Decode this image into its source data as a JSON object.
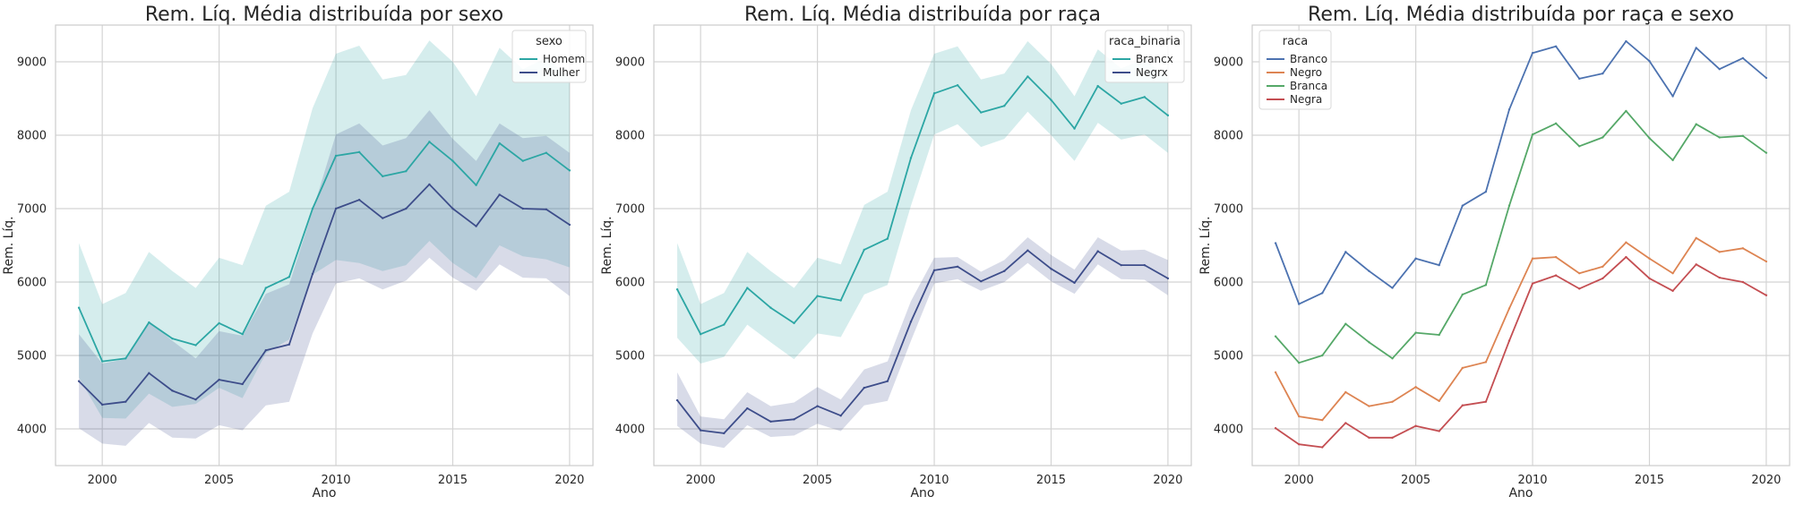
{
  "chart_data": [
    {
      "type": "line",
      "title": "Rem. Líq. Média distribuída por sexo",
      "xlabel": "Ano",
      "ylabel": "Rem. Líq.",
      "xlim": [
        1998,
        2021
      ],
      "ylim": [
        3500,
        9500
      ],
      "xticks": [
        2000,
        2005,
        2010,
        2015,
        2020
      ],
      "yticks": [
        4000,
        5000,
        6000,
        7000,
        8000,
        9000
      ],
      "grid": true,
      "legend": {
        "title": "sexo",
        "placement": "top-right"
      },
      "x": [
        1999,
        2000,
        2001,
        2002,
        2003,
        2004,
        2005,
        2006,
        2007,
        2008,
        2009,
        2010,
        2011,
        2012,
        2013,
        2014,
        2015,
        2016,
        2017,
        2018,
        2019,
        2020
      ],
      "series": [
        {
          "name": "Homem",
          "color": "#2ca6a4",
          "values": [
            5650,
            4920,
            4960,
            5450,
            5230,
            5140,
            5440,
            5290,
            5920,
            6070,
            7000,
            7720,
            7770,
            7440,
            7510,
            7910,
            7650,
            7320,
            7890,
            7650,
            7760,
            7520
          ],
          "lower": [
            4700,
            4150,
            4140,
            4480,
            4300,
            4340,
            4560,
            4420,
            5030,
            5220,
            6100,
            6300,
            6260,
            6150,
            6230,
            6560,
            6260,
            6050,
            6500,
            6350,
            6310,
            6200
          ],
          "upper": [
            6530,
            5700,
            5850,
            6410,
            6150,
            5920,
            6330,
            6230,
            7040,
            7230,
            8370,
            9110,
            9220,
            8760,
            8820,
            9290,
            9000,
            8530,
            9190,
            8900,
            9050,
            8780
          ]
        },
        {
          "name": "Mulher",
          "color": "#3d4d8a",
          "values": [
            4650,
            4330,
            4370,
            4760,
            4520,
            4400,
            4670,
            4610,
            5070,
            5150,
            6110,
            7000,
            7120,
            6870,
            7000,
            7330,
            7000,
            6760,
            7190,
            7000,
            6990,
            6780
          ],
          "lower": [
            4010,
            3800,
            3770,
            4080,
            3880,
            3870,
            4050,
            3980,
            4320,
            4370,
            5300,
            5980,
            6050,
            5900,
            6020,
            6330,
            6060,
            5880,
            6240,
            6060,
            6050,
            5810
          ],
          "upper": [
            5290,
            4890,
            4950,
            5470,
            5200,
            4960,
            5330,
            5270,
            5840,
            5970,
            6970,
            8010,
            8160,
            7860,
            7960,
            8340,
            7950,
            7650,
            8160,
            7960,
            7990,
            7760
          ]
        }
      ]
    },
    {
      "type": "line",
      "title": "Rem. Líq. Média distribuída por raça",
      "xlabel": "Ano",
      "ylabel": "Rem. Líq.",
      "xlim": [
        1998,
        2021
      ],
      "ylim": [
        3500,
        9500
      ],
      "xticks": [
        2000,
        2005,
        2010,
        2015,
        2020
      ],
      "yticks": [
        4000,
        5000,
        6000,
        7000,
        8000,
        9000
      ],
      "grid": true,
      "legend": {
        "title": "raca_binaria",
        "placement": "top-right"
      },
      "x": [
        1999,
        2000,
        2001,
        2002,
        2003,
        2004,
        2005,
        2006,
        2007,
        2008,
        2009,
        2010,
        2011,
        2012,
        2013,
        2014,
        2015,
        2016,
        2017,
        2018,
        2019,
        2020
      ],
      "series": [
        {
          "name": "Brancx",
          "color": "#2ca6a4",
          "values": [
            5900,
            5290,
            5420,
            5920,
            5650,
            5440,
            5810,
            5750,
            6440,
            6590,
            7690,
            8570,
            8680,
            8310,
            8400,
            8800,
            8480,
            8090,
            8670,
            8430,
            8520,
            8270
          ],
          "lower": [
            5240,
            4890,
            4980,
            5420,
            5180,
            4950,
            5300,
            5250,
            5830,
            5960,
            7040,
            8010,
            8150,
            7840,
            7950,
            8320,
            8000,
            7650,
            8170,
            7940,
            8010,
            7760
          ],
          "upper": [
            6530,
            5700,
            5850,
            6410,
            6150,
            5920,
            6330,
            6240,
            7050,
            7230,
            8340,
            9110,
            9210,
            8760,
            8840,
            9280,
            8970,
            8530,
            9170,
            8910,
            9040,
            8770
          ]
        },
        {
          "name": "Negrx",
          "color": "#3d4d8a",
          "values": [
            4390,
            3980,
            3940,
            4280,
            4100,
            4130,
            4310,
            4180,
            4560,
            4650,
            5460,
            6160,
            6210,
            6010,
            6150,
            6430,
            6180,
            5990,
            6420,
            6230,
            6230,
            6050
          ],
          "lower": [
            4040,
            3800,
            3740,
            4050,
            3890,
            3910,
            4070,
            3970,
            4320,
            4380,
            5200,
            5980,
            6040,
            5880,
            6000,
            6260,
            6010,
            5840,
            6240,
            6040,
            6030,
            5820
          ],
          "upper": [
            4770,
            4170,
            4130,
            4500,
            4310,
            4360,
            4570,
            4400,
            4810,
            4920,
            5740,
            6330,
            6340,
            6140,
            6300,
            6610,
            6370,
            6170,
            6610,
            6430,
            6440,
            6300
          ]
        }
      ]
    },
    {
      "type": "line",
      "title": "Rem. Líq. Média distribuída por raça e sexo",
      "xlabel": "Ano",
      "ylabel": "Rem. Líq.",
      "xlim": [
        1998,
        2021
      ],
      "ylim": [
        3500,
        9500
      ],
      "xticks": [
        2000,
        2005,
        2010,
        2015,
        2020
      ],
      "yticks": [
        4000,
        5000,
        6000,
        7000,
        8000,
        9000
      ],
      "grid": true,
      "legend": {
        "title": "raca",
        "placement": "top-left"
      },
      "x": [
        1999,
        2000,
        2001,
        2002,
        2003,
        2004,
        2005,
        2006,
        2007,
        2008,
        2009,
        2010,
        2011,
        2012,
        2013,
        2014,
        2015,
        2016,
        2017,
        2018,
        2019,
        2020
      ],
      "series": [
        {
          "name": "Branco",
          "color": "#4c72b0",
          "values": [
            6530,
            5700,
            5850,
            6410,
            6150,
            5920,
            6320,
            6230,
            7040,
            7230,
            8350,
            9120,
            9210,
            8770,
            8840,
            9280,
            9010,
            8530,
            9190,
            8900,
            9050,
            8780
          ]
        },
        {
          "name": "Negro",
          "color": "#dd8452",
          "values": [
            4770,
            4170,
            4120,
            4500,
            4310,
            4370,
            4570,
            4380,
            4830,
            4910,
            5640,
            6320,
            6340,
            6120,
            6210,
            6540,
            6320,
            6120,
            6600,
            6410,
            6460,
            6280
          ]
        },
        {
          "name": "Branca",
          "color": "#55a868",
          "values": [
            5260,
            4900,
            5000,
            5430,
            5180,
            4960,
            5310,
            5280,
            5830,
            5960,
            7040,
            8010,
            8160,
            7850,
            7970,
            8330,
            7960,
            7660,
            8150,
            7970,
            7990,
            7760
          ]
        },
        {
          "name": "Negra",
          "color": "#c44e52",
          "values": [
            4010,
            3790,
            3750,
            4080,
            3880,
            3880,
            4040,
            3970,
            4320,
            4370,
            5200,
            5980,
            6090,
            5910,
            6050,
            6340,
            6050,
            5880,
            6240,
            6060,
            6000,
            5820
          ]
        }
      ]
    }
  ]
}
